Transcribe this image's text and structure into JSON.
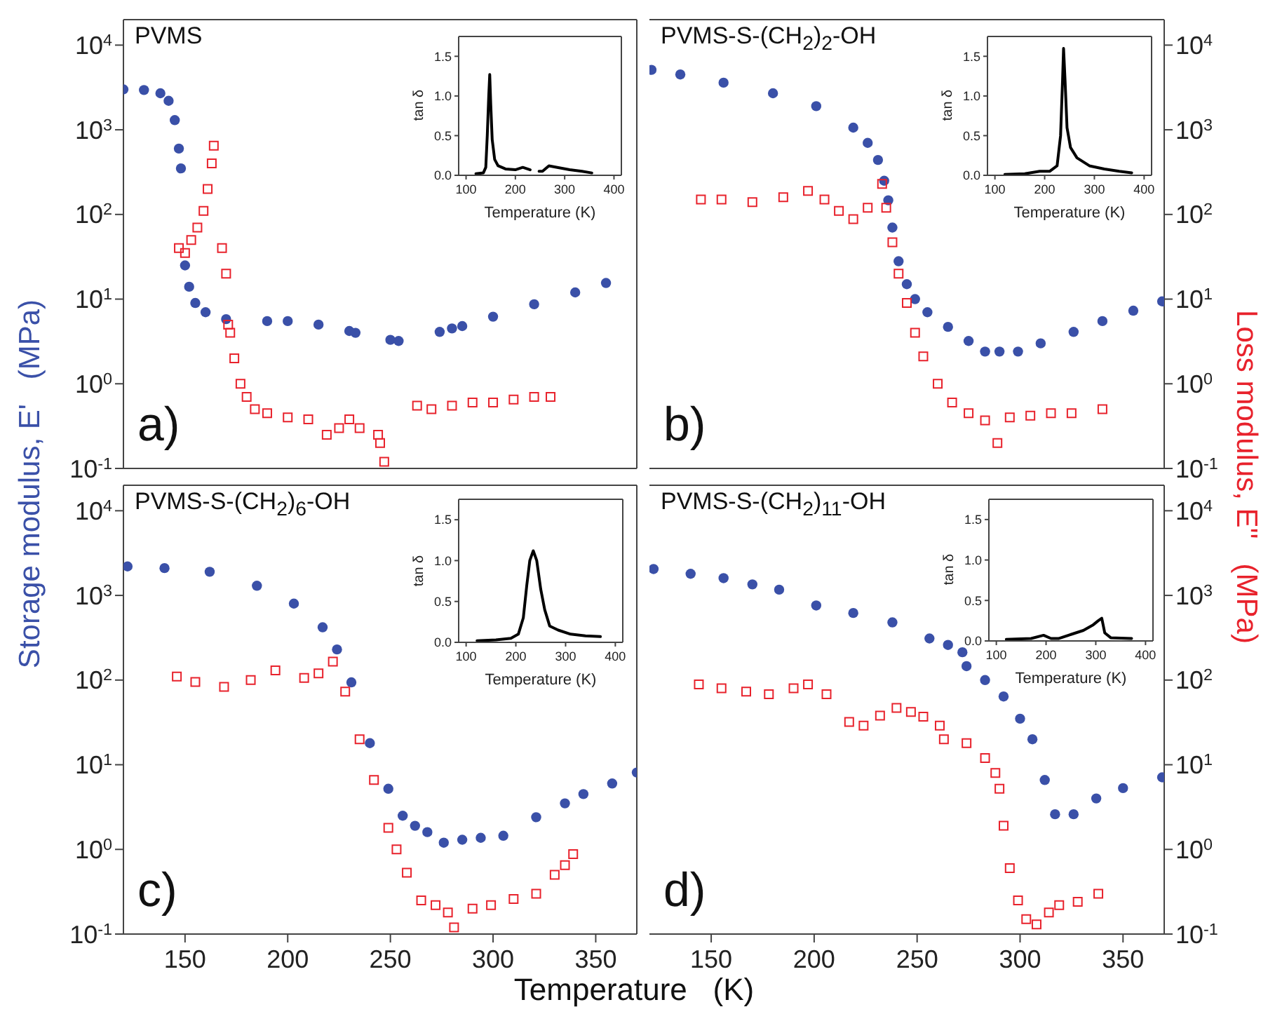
{
  "chart_data": [
    {
      "type": "scatter",
      "title": "PVMS",
      "annotations": [
        "a)"
      ],
      "ylabel": "Storage modulus, E'   (MPa)",
      "log": "y",
      "tick_labels": "y",
      "xlim": [
        120,
        370
      ],
      "xticks": [
        150,
        200,
        250,
        300,
        350
      ],
      "ylim": [
        0.1,
        20000
      ],
      "yticks": [
        {
          "value": 0.1,
          "label": "10$^{-1}$"
        },
        {
          "value": 1,
          "label": "10$^{0}$"
        },
        {
          "value": 10,
          "label": "10$^{1}$"
        },
        {
          "value": 100,
          "label": "10$^{2}$"
        },
        {
          "value": 1000,
          "label": "10$^{3}$"
        },
        {
          "value": 10000,
          "label": "10$^{4}$"
        }
      ],
      "series": [
        {
          "color": "#3a50a8",
          "marker": "circle",
          "x": [
            120,
            130,
            138,
            142,
            145,
            147,
            148,
            150,
            152,
            155,
            160,
            170,
            190,
            200,
            215,
            230,
            233,
            250,
            254,
            274,
            280,
            285,
            300,
            320,
            340,
            355
          ],
          "values": [
            3000,
            2950,
            2700,
            2200,
            1300,
            600,
            350,
            25,
            14,
            9,
            7,
            5.8,
            5.5,
            5.5,
            5.0,
            4.2,
            4.0,
            3.3,
            3.2,
            4.1,
            4.5,
            4.8,
            6.2,
            8.7,
            12,
            15.5
          ]
        },
        {
          "color": "#e8222c",
          "marker": "square",
          "x": [
            147,
            150,
            153,
            156,
            159,
            161,
            163,
            164,
            168,
            170,
            171,
            172,
            174,
            177,
            180,
            184,
            190,
            200,
            210,
            219,
            225,
            230,
            235,
            244,
            245,
            247,
            263,
            270,
            280,
            290,
            300,
            310,
            320,
            328
          ],
          "values": [
            40,
            35,
            50,
            70,
            110,
            200,
            400,
            650,
            40,
            20,
            5,
            4,
            2,
            1.0,
            0.7,
            0.5,
            0.45,
            0.4,
            0.38,
            0.25,
            0.3,
            0.38,
            0.3,
            0.25,
            0.2,
            0.12,
            0.55,
            0.5,
            0.55,
            0.6,
            0.6,
            0.65,
            0.7,
            0.7
          ]
        }
      ]
    },
    {
      "type": "scatter",
      "title": "PVMS-S-(CH$_{2}$)$_{2}$-OH",
      "annotations": [
        "b)"
      ],
      "y2label": "Loss modulus, E''   (MPa)",
      "log": "y2",
      "tick_labels": "y",
      "xlim": [
        120,
        370
      ],
      "xticks": [
        150,
        200,
        250,
        300,
        350
      ],
      "y2lim": [
        0.1,
        20000
      ],
      "y2ticks": [
        {
          "value": 0.1,
          "label": "10$^{-1}$"
        },
        {
          "value": 1,
          "label": "10$^{0}$"
        },
        {
          "value": 10,
          "label": "10$^{1}$"
        },
        {
          "value": 100,
          "label": "10$^{2}$"
        },
        {
          "value": 1000,
          "label": "10$^{3}$"
        },
        {
          "value": 10000,
          "label": "10$^{4}$"
        }
      ],
      "series": [
        {
          "color": "#3a50a8",
          "marker": "circle",
          "axis": "y2",
          "x": [
            121,
            135,
            156,
            180,
            201,
            219,
            226,
            231,
            234,
            236,
            238,
            241,
            245,
            249,
            255,
            265,
            275,
            283,
            290,
            299,
            310,
            326,
            340,
            355,
            369
          ],
          "values": [
            5100,
            4500,
            3600,
            2700,
            1900,
            1060,
            700,
            440,
            250,
            147,
            70,
            28,
            15,
            10,
            7,
            4.7,
            3.2,
            2.4,
            2.4,
            2.4,
            3.0,
            4.1,
            5.5,
            7.3,
            9.4
          ]
        },
        {
          "color": "#e8222c",
          "marker": "square",
          "axis": "y2",
          "x": [
            145,
            155,
            170,
            185,
            197,
            205,
            212,
            219,
            226,
            233,
            235,
            238,
            241,
            245,
            249,
            253,
            260,
            267,
            275,
            283,
            289,
            295,
            305,
            315,
            325,
            340
          ],
          "values": [
            150,
            150,
            140,
            160,
            190,
            150,
            110,
            88,
            120,
            230,
            120,
            47,
            20,
            9,
            4,
            2.1,
            1.0,
            0.6,
            0.45,
            0.37,
            0.2,
            0.4,
            0.42,
            0.45,
            0.45,
            0.5
          ]
        }
      ]
    },
    {
      "type": "scatter",
      "title": "PVMS-S-(CH$_{2}$)$_{6}$-OH",
      "annotations": [
        "c)"
      ],
      "xlabel": "Temperature   (K)",
      "log": "y",
      "xlim": [
        120,
        370
      ],
      "xticks": [
        150,
        200,
        250,
        300,
        350
      ],
      "ylim": [
        0.1,
        20000
      ],
      "yticks": [
        {
          "value": 0.1,
          "label": "10$^{-1}$"
        },
        {
          "value": 1,
          "label": "10$^{0}$"
        },
        {
          "value": 10,
          "label": "10$^{1}$"
        },
        {
          "value": 100,
          "label": "10$^{2}$"
        },
        {
          "value": 1000,
          "label": "10$^{3}$"
        },
        {
          "value": 10000,
          "label": "10$^{4}$"
        }
      ],
      "series": [
        {
          "color": "#3a50a8",
          "marker": "circle",
          "x": [
            122,
            140,
            162,
            185,
            203,
            217,
            224,
            231,
            240,
            249,
            256,
            262,
            268,
            276,
            285,
            294,
            305,
            321,
            335,
            344,
            358,
            370
          ],
          "values": [
            2200,
            2100,
            1900,
            1300,
            800,
            420,
            230,
            94,
            18,
            5.2,
            2.5,
            1.9,
            1.6,
            1.2,
            1.3,
            1.37,
            1.45,
            2.4,
            3.5,
            4.5,
            6,
            8.1
          ]
        },
        {
          "color": "#e8222c",
          "marker": "square",
          "x": [
            146,
            155,
            169,
            182,
            194,
            208,
            215,
            222,
            228,
            235,
            242,
            249,
            253,
            258,
            265,
            272,
            278,
            281,
            290,
            299,
            310,
            321,
            330,
            335,
            339
          ],
          "values": [
            110,
            95,
            83,
            100,
            130,
            106,
            120,
            165,
            73,
            20,
            6.6,
            1.8,
            1.0,
            0.53,
            0.25,
            0.22,
            0.18,
            0.12,
            0.2,
            0.22,
            0.26,
            0.3,
            0.5,
            0.65,
            0.88
          ]
        }
      ]
    },
    {
      "type": "scatter",
      "title": "PVMS-S-(CH$_{2}$)$_{11}$-OH",
      "annotations": [
        "d)"
      ],
      "log": "y2",
      "xlim": [
        120,
        370
      ],
      "xticks": [
        150,
        200,
        250,
        300,
        350
      ],
      "y2lim": [
        0.1,
        20000
      ],
      "y2ticks": [
        {
          "value": 0.1,
          "label": "10$^{-1}$"
        },
        {
          "value": 1,
          "label": "10$^{0}$"
        },
        {
          "value": 10,
          "label": "10$^{1}$"
        },
        {
          "value": 100,
          "label": "10$^{2}$"
        },
        {
          "value": 1000,
          "label": "10$^{3}$"
        },
        {
          "value": 10000,
          "label": "10$^{4}$"
        }
      ],
      "series": [
        {
          "color": "#3a50a8",
          "marker": "circle",
          "axis": "y2",
          "x": [
            122,
            140,
            156,
            170,
            183,
            201,
            219,
            238,
            256,
            265,
            272,
            274,
            283,
            292,
            300,
            306,
            312,
            317,
            326,
            337,
            350,
            369
          ],
          "values": [
            2050,
            1800,
            1600,
            1350,
            1170,
            760,
            620,
            480,
            310,
            260,
            213,
            146,
            100,
            64,
            35,
            20,
            6.6,
            2.6,
            2.6,
            4,
            5.3,
            7.1
          ]
        },
        {
          "color": "#e8222c",
          "marker": "square",
          "axis": "y2",
          "x": [
            144,
            155,
            167,
            178,
            190,
            197,
            206,
            217,
            224,
            232,
            240,
            247,
            253,
            261,
            263,
            274,
            283,
            288,
            290,
            292,
            295,
            299,
            303,
            308,
            314,
            319,
            328,
            338
          ],
          "values": [
            89,
            80,
            73,
            68,
            80,
            89,
            68,
            32,
            29,
            38,
            47,
            42,
            37,
            29,
            20,
            18,
            12,
            8,
            5.2,
            1.9,
            0.6,
            0.25,
            0.15,
            0.13,
            0.18,
            0.22,
            0.24,
            0.3
          ]
        }
      ]
    },
    {
      "type": "line",
      "xlabel": "Temperature   (K)",
      "ylabel": "tan δ",
      "xlim": [
        85,
        415
      ],
      "xticks": [
        100,
        200,
        300,
        400
      ],
      "ylim": [
        0,
        1.75
      ],
      "yticks": [
        {
          "value": 0,
          "label": "0.0"
        },
        {
          "value": 0.5,
          "label": "0.5"
        },
        {
          "value": 1,
          "label": "1.0"
        },
        {
          "value": 1.5,
          "label": "1.5"
        }
      ],
      "series": [
        {
          "color": "#000000",
          "x": [
            120,
            135,
            140,
            143,
            146,
            148,
            150,
            153,
            158,
            165,
            180,
            200,
            215,
            230,
            240,
            248,
            255,
            268,
            285,
            310,
            335,
            355
          ],
          "values": [
            0.02,
            0.03,
            0.1,
            0.5,
            1.0,
            1.27,
            0.9,
            0.45,
            0.2,
            0.12,
            0.08,
            0.07,
            0.1,
            0.07,
            null,
            0.05,
            0.05,
            0.12,
            0.1,
            0.07,
            0.05,
            0.03
          ]
        }
      ]
    },
    {
      "type": "line",
      "xlabel": "Temperature   (K)",
      "ylabel": "tan δ",
      "xlim": [
        85,
        415
      ],
      "xticks": [
        100,
        200,
        300,
        400
      ],
      "ylim": [
        0,
        1.75
      ],
      "yticks": [
        {
          "value": 0,
          "label": "0.0"
        },
        {
          "value": 0.5,
          "label": "0.5"
        },
        {
          "value": 1,
          "label": "1.0"
        },
        {
          "value": 1.5,
          "label": "1.5"
        }
      ],
      "series": [
        {
          "color": "#000000",
          "x": [
            120,
            160,
            190,
            210,
            225,
            232,
            236,
            238,
            241,
            245,
            252,
            265,
            290,
            320,
            350,
            375
          ],
          "values": [
            0.01,
            0.02,
            0.05,
            0.05,
            0.12,
            0.5,
            1.2,
            1.6,
            1.2,
            0.6,
            0.35,
            0.22,
            0.12,
            0.08,
            0.05,
            0.03
          ]
        }
      ]
    },
    {
      "type": "line",
      "xlabel": "Temperature   (K)",
      "ylabel": "tan δ",
      "xlim": [
        85,
        415
      ],
      "xticks": [
        100,
        200,
        300,
        400
      ],
      "ylim": [
        0,
        1.75
      ],
      "yticks": [
        {
          "value": 0,
          "label": "0.0"
        },
        {
          "value": 0.5,
          "label": "0.5"
        },
        {
          "value": 1,
          "label": "1.0"
        },
        {
          "value": 1.5,
          "label": "1.5"
        }
      ],
      "series": [
        {
          "color": "#000000",
          "x": [
            122,
            160,
            190,
            205,
            215,
            222,
            228,
            235,
            242,
            250,
            258,
            268,
            285,
            310,
            340,
            370
          ],
          "values": [
            0.02,
            0.03,
            0.05,
            0.1,
            0.3,
            0.7,
            1.0,
            1.12,
            1.0,
            0.65,
            0.4,
            0.2,
            0.15,
            0.1,
            0.08,
            0.07
          ]
        }
      ]
    },
    {
      "type": "line",
      "xlabel": "Temperature   (K)",
      "ylabel": "tan δ",
      "xlim": [
        85,
        415
      ],
      "xticks": [
        100,
        200,
        300,
        400
      ],
      "ylim": [
        0,
        1.75
      ],
      "yticks": [
        {
          "value": 0,
          "label": "0.0"
        },
        {
          "value": 0.5,
          "label": "0.5"
        },
        {
          "value": 1,
          "label": "1.0"
        },
        {
          "value": 1.5,
          "label": "1.5"
        }
      ],
      "series": [
        {
          "color": "#000000",
          "x": [
            120,
            170,
            195,
            210,
            225,
            250,
            275,
            295,
            305,
            312,
            318,
            330,
            372
          ],
          "values": [
            0.02,
            0.03,
            0.07,
            0.03,
            0.03,
            0.08,
            0.13,
            0.2,
            0.25,
            0.28,
            0.1,
            0.04,
            0.03
          ]
        }
      ]
    }
  ]
}
